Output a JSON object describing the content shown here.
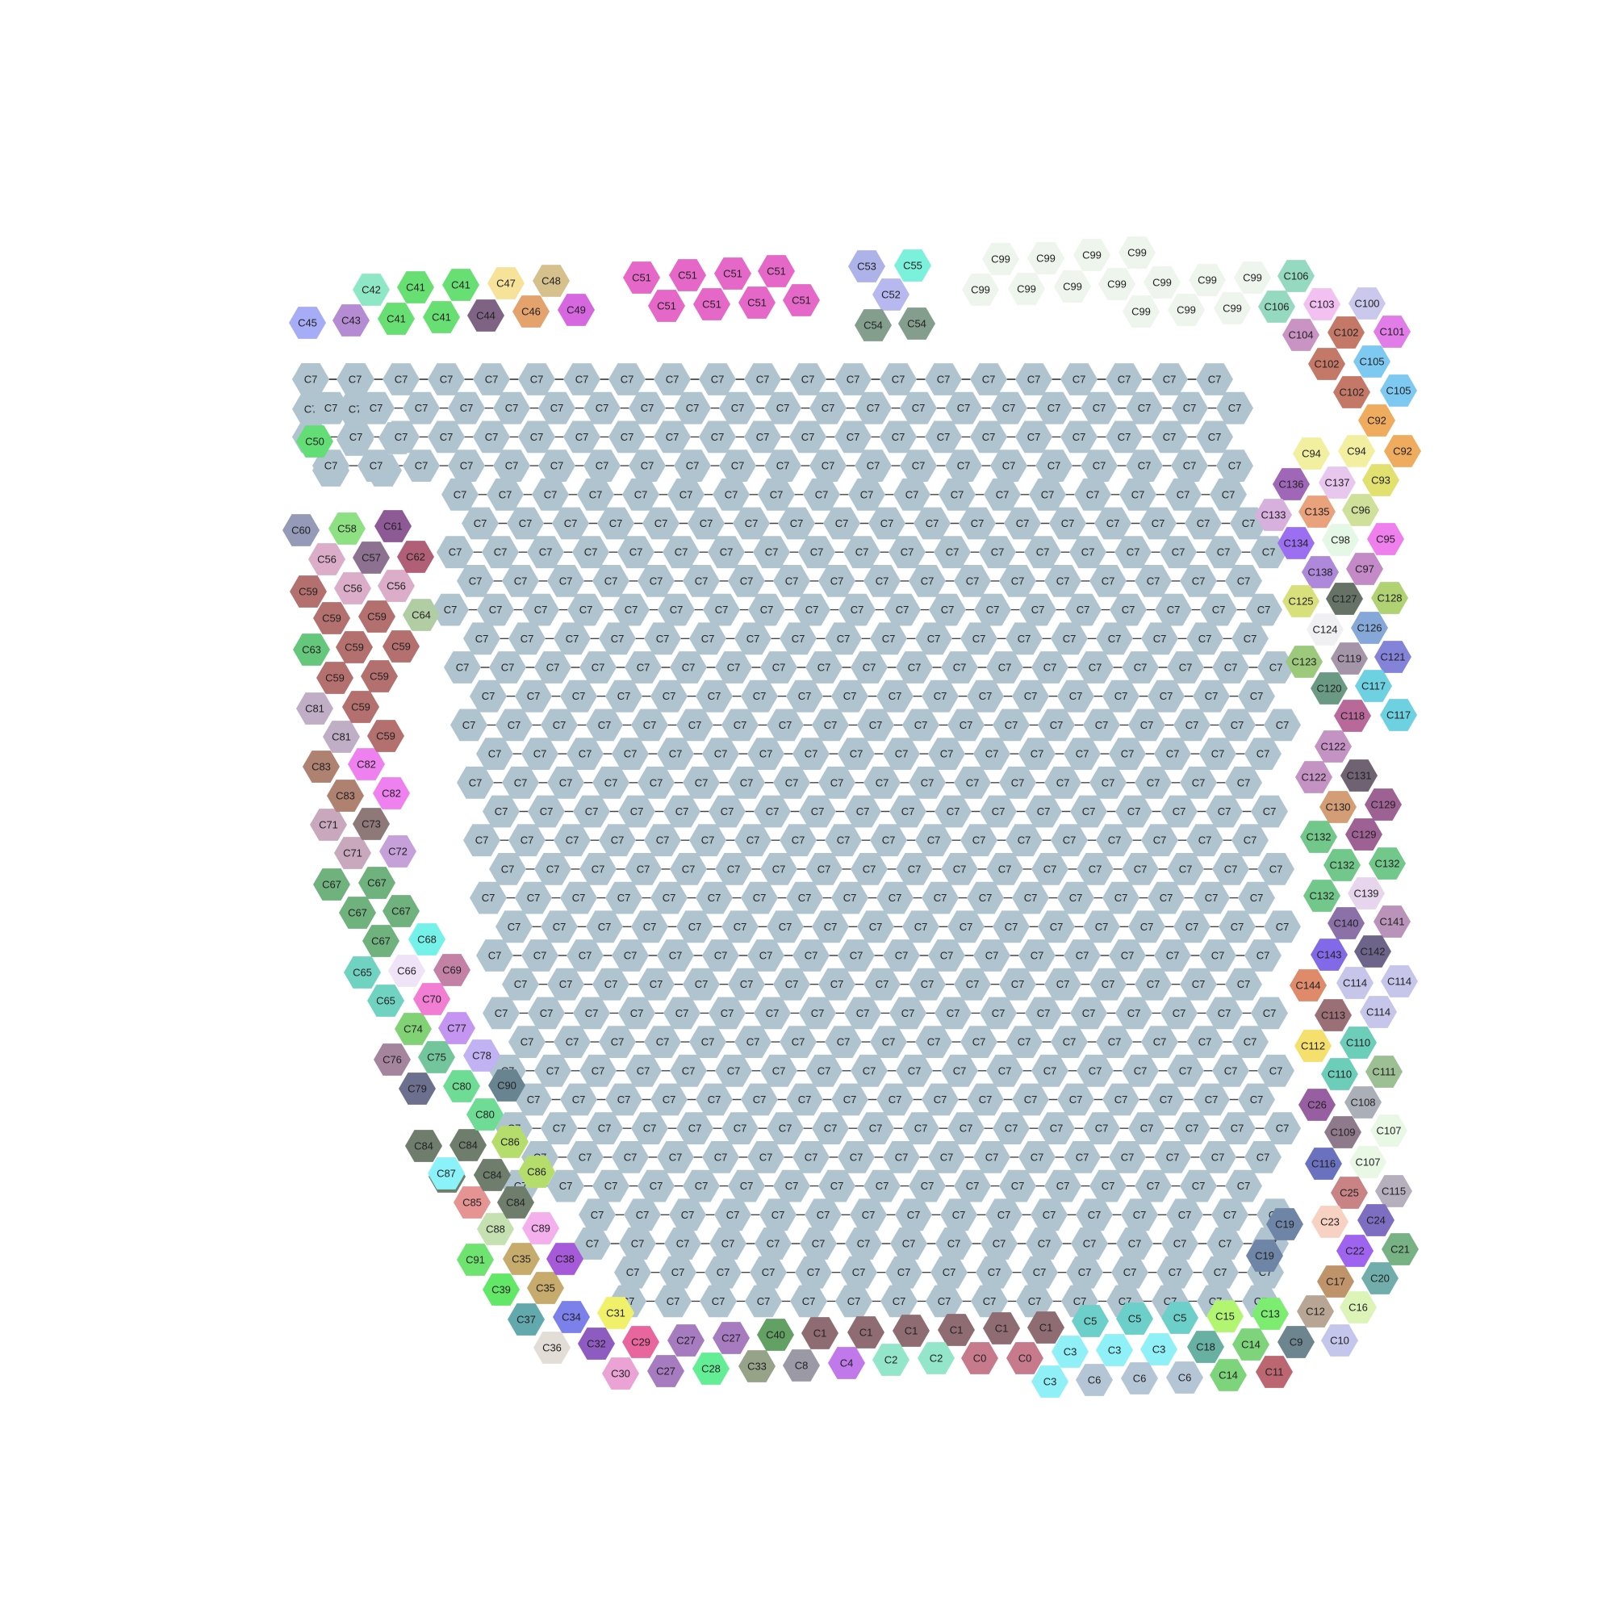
{
  "diagram": {
    "type": "hexagonal cluster graph",
    "main_cluster": {
      "label": "C7",
      "color": "#b0c4d0",
      "node_count": 1350
    },
    "small_clusters": [
      {
        "label": "C0",
        "color": "#c77a8b",
        "count": 2
      },
      {
        "label": "C1",
        "color": "#8f6c72",
        "count": 6
      },
      {
        "label": "C2",
        "color": "#93e6c9",
        "count": 2
      },
      {
        "label": "C3",
        "color": "#8ff1f7",
        "count": 4
      },
      {
        "label": "C4",
        "color": "#c078ea",
        "count": 1
      },
      {
        "label": "C5",
        "color": "#6ccfc9",
        "count": 3
      },
      {
        "label": "C6",
        "color": "#b4c5d5",
        "count": 3
      },
      {
        "label": "C8",
        "color": "#9b99a6",
        "count": 1
      },
      {
        "label": "C9",
        "color": "#6c858e",
        "count": 1
      },
      {
        "label": "C10",
        "color": "#c4c6ec",
        "count": 1
      },
      {
        "label": "C11",
        "color": "#bb6670",
        "count": 1
      },
      {
        "label": "C12",
        "color": "#b8a594",
        "count": 1
      },
      {
        "label": "C13",
        "color": "#7ced70",
        "count": 1
      },
      {
        "label": "C14",
        "color": "#7ed47a",
        "count": 2
      },
      {
        "label": "C15",
        "color": "#b2f571",
        "count": 1
      },
      {
        "label": "C16",
        "color": "#dcf4b7",
        "count": 1
      },
      {
        "label": "C17",
        "color": "#bf946a",
        "count": 1
      },
      {
        "label": "C18",
        "color": "#67b0a2",
        "count": 1
      },
      {
        "label": "C19",
        "color": "#6f85a7",
        "count": 2
      },
      {
        "label": "C20",
        "color": "#71aeab",
        "count": 1
      },
      {
        "label": "C21",
        "color": "#76b283",
        "count": 1
      },
      {
        "label": "C22",
        "color": "#9e63ef",
        "count": 1
      },
      {
        "label": "C23",
        "color": "#f7d2c3",
        "count": 1
      },
      {
        "label": "C24",
        "color": "#7e6ec2",
        "count": 1
      },
      {
        "label": "C25",
        "color": "#c98385",
        "count": 1
      },
      {
        "label": "C26",
        "color": "#985ea2",
        "count": 1
      },
      {
        "label": "C27",
        "color": "#a67bc0",
        "count": 3
      },
      {
        "label": "C28",
        "color": "#63ee96",
        "count": 1
      },
      {
        "label": "C29",
        "color": "#e8659e",
        "count": 1
      },
      {
        "label": "C30",
        "color": "#eba3d6",
        "count": 1
      },
      {
        "label": "C31",
        "color": "#f1f06b",
        "count": 1
      },
      {
        "label": "C32",
        "color": "#8e5bc1",
        "count": 1
      },
      {
        "label": "C33",
        "color": "#96a388",
        "count": 1
      },
      {
        "label": "C34",
        "color": "#7b80ea",
        "count": 1
      },
      {
        "label": "C35",
        "color": "#c7ab6d",
        "count": 2
      },
      {
        "label": "C36",
        "color": "#e2ded7",
        "count": 1
      },
      {
        "label": "C37",
        "color": "#62a9ad",
        "count": 1
      },
      {
        "label": "C38",
        "color": "#a659d9",
        "count": 1
      },
      {
        "label": "C39",
        "color": "#62e767",
        "count": 1
      },
      {
        "label": "C40",
        "color": "#62a064",
        "count": 1
      },
      {
        "label": "C41",
        "color": "#68df73",
        "count": 4
      },
      {
        "label": "C42",
        "color": "#8fe8c5",
        "count": 1
      },
      {
        "label": "C43",
        "color": "#b58bd3",
        "count": 1
      },
      {
        "label": "C44",
        "color": "#7f6385",
        "count": 1
      },
      {
        "label": "C45",
        "color": "#a6acf5",
        "count": 1
      },
      {
        "label": "C46",
        "color": "#e4a26d",
        "count": 1
      },
      {
        "label": "C47",
        "color": "#f6e298",
        "count": 1
      },
      {
        "label": "C48",
        "color": "#d6c18d",
        "count": 1
      },
      {
        "label": "C49",
        "color": "#d767e0",
        "count": 1
      },
      {
        "label": "C50",
        "color": "#63dd76",
        "count": 1
      },
      {
        "label": "C51",
        "color": "#e567c7",
        "count": 8
      },
      {
        "label": "C52",
        "color": "#b8b8f1",
        "count": 1
      },
      {
        "label": "C53",
        "color": "#adb3e8",
        "count": 1
      },
      {
        "label": "C54",
        "color": "#849e8e",
        "count": 2
      },
      {
        "label": "C55",
        "color": "#7bf0da",
        "count": 1
      },
      {
        "label": "C56",
        "color": "#dcadc9",
        "count": 3
      },
      {
        "label": "C57",
        "color": "#8d7191",
        "count": 1
      },
      {
        "label": "C58",
        "color": "#8ee183",
        "count": 1
      },
      {
        "label": "C59",
        "color": "#b3706e",
        "count": 8
      },
      {
        "label": "C60",
        "color": "#949ab7",
        "count": 1
      },
      {
        "label": "C61",
        "color": "#8e5a96",
        "count": 1
      },
      {
        "label": "C62",
        "color": "#b05f76",
        "count": 1
      },
      {
        "label": "C63",
        "color": "#64c77c",
        "count": 1
      },
      {
        "label": "C64",
        "color": "#b1cda4",
        "count": 1
      },
      {
        "label": "C65",
        "color": "#70d3c2",
        "count": 2
      },
      {
        "label": "C66",
        "color": "#efe3f7",
        "count": 1
      },
      {
        "label": "C67",
        "color": "#6fb27e",
        "count": 4
      },
      {
        "label": "C68",
        "color": "#74f1e8",
        "count": 1
      },
      {
        "label": "C69",
        "color": "#c381a5",
        "count": 1
      },
      {
        "label": "C70",
        "color": "#f27ed3",
        "count": 1
      },
      {
        "label": "C71",
        "color": "#c9a8bd",
        "count": 2
      },
      {
        "label": "C72",
        "color": "#c6a0d8",
        "count": 1
      },
      {
        "label": "C73",
        "color": "#8f7878",
        "count": 1
      },
      {
        "label": "C74",
        "color": "#80d275",
        "count": 1
      },
      {
        "label": "C75",
        "color": "#73c69c",
        "count": 1
      },
      {
        "label": "C76",
        "color": "#a5849e",
        "count": 1
      },
      {
        "label": "C77",
        "color": "#c596f1",
        "count": 1
      },
      {
        "label": "C78",
        "color": "#c1b3f3",
        "count": 1
      },
      {
        "label": "C79",
        "color": "#6c6f8e",
        "count": 1
      },
      {
        "label": "C80",
        "color": "#6edc94",
        "count": 2
      },
      {
        "label": "C81",
        "color": "#bfaec5",
        "count": 2
      },
      {
        "label": "C82",
        "color": "#ef80ef",
        "count": 2
      },
      {
        "label": "C83",
        "color": "#ae8170",
        "count": 2
      },
      {
        "label": "C84",
        "color": "#6e7d6c",
        "count": 5
      },
      {
        "label": "C85",
        "color": "#e59393",
        "count": 1
      },
      {
        "label": "C86",
        "color": "#b5dd6c",
        "count": 2
      },
      {
        "label": "C87",
        "color": "#8af2f8",
        "count": 1
      },
      {
        "label": "C88",
        "color": "#c5e0b1",
        "count": 1
      },
      {
        "label": "C89",
        "color": "#f3b0ed",
        "count": 1
      },
      {
        "label": "C90",
        "color": "#688490",
        "count": 1
      },
      {
        "label": "C91",
        "color": "#6fe36f",
        "count": 1
      },
      {
        "label": "C92",
        "color": "#efab5e",
        "count": 2
      },
      {
        "label": "C93",
        "color": "#e2e06f",
        "count": 1
      },
      {
        "label": "C94",
        "color": "#f2f0a0",
        "count": 2
      },
      {
        "label": "C95",
        "color": "#ee7fec",
        "count": 1
      },
      {
        "label": "C96",
        "color": "#cfe09a",
        "count": 1
      },
      {
        "label": "C97",
        "color": "#c489c7",
        "count": 1
      },
      {
        "label": "C98",
        "color": "#e5f7e5",
        "count": 1
      },
      {
        "label": "C99",
        "color": "#edf5ec",
        "count": 19
      },
      {
        "label": "C100",
        "color": "#cbc8ee",
        "count": 1
      },
      {
        "label": "C101",
        "color": "#e17ce9",
        "count": 1
      },
      {
        "label": "C102",
        "color": "#c47867",
        "count": 3
      },
      {
        "label": "C103",
        "color": "#f2c1f2",
        "count": 1
      },
      {
        "label": "C104",
        "color": "#c993c3",
        "count": 1
      },
      {
        "label": "C105",
        "color": "#7dc9f1",
        "count": 2
      },
      {
        "label": "C106",
        "color": "#96d9c1",
        "count": 2
      },
      {
        "label": "C107",
        "color": "#e8f8e5",
        "count": 2
      },
      {
        "label": "C108",
        "color": "#abb0b8",
        "count": 1
      },
      {
        "label": "C109",
        "color": "#8f7a8c",
        "count": 1
      },
      {
        "label": "C110",
        "color": "#6ccdb9",
        "count": 2
      },
      {
        "label": "C111",
        "color": "#9cbf94",
        "count": 1
      },
      {
        "label": "C112",
        "color": "#f5df6d",
        "count": 1
      },
      {
        "label": "C113",
        "color": "#9a6f75",
        "count": 1
      },
      {
        "label": "C114",
        "color": "#c5c6ea",
        "count": 3
      },
      {
        "label": "C115",
        "color": "#b6afbe",
        "count": 1
      },
      {
        "label": "C116",
        "color": "#6a72bf",
        "count": 1
      },
      {
        "label": "C117",
        "color": "#6ed1e2",
        "count": 2
      },
      {
        "label": "C118",
        "color": "#b9689a",
        "count": 1
      },
      {
        "label": "C119",
        "color": "#a595a9",
        "count": 1
      },
      {
        "label": "C120",
        "color": "#6b9a84",
        "count": 1
      },
      {
        "label": "C121",
        "color": "#8483da",
        "count": 1
      },
      {
        "label": "C122",
        "color": "#c492c3",
        "count": 2
      },
      {
        "label": "C123",
        "color": "#9dc97c",
        "count": 1
      },
      {
        "label": "C124",
        "color": "#f0eff2",
        "count": 1
      },
      {
        "label": "C125",
        "color": "#d8e07c",
        "count": 1
      },
      {
        "label": "C126",
        "color": "#86a8d8",
        "count": 1
      },
      {
        "label": "C127",
        "color": "#667266",
        "count": 1
      },
      {
        "label": "C128",
        "color": "#b1d272",
        "count": 1
      },
      {
        "label": "C129",
        "color": "#9e6194",
        "count": 2
      },
      {
        "label": "C130",
        "color": "#d39e75",
        "count": 1
      },
      {
        "label": "C131",
        "color": "#6f6273",
        "count": 1
      },
      {
        "label": "C132",
        "color": "#72c78a",
        "count": 4
      },
      {
        "label": "C133",
        "color": "#d7b0de",
        "count": 1
      },
      {
        "label": "C134",
        "color": "#9c6ff2",
        "count": 1
      },
      {
        "label": "C135",
        "color": "#e9a27b",
        "count": 1
      },
      {
        "label": "C136",
        "color": "#a067b8",
        "count": 1
      },
      {
        "label": "C137",
        "color": "#e8c7ef",
        "count": 1
      },
      {
        "label": "C138",
        "color": "#ae88da",
        "count": 1
      },
      {
        "label": "C139",
        "color": "#e7d5ed",
        "count": 1
      },
      {
        "label": "C140",
        "color": "#8b71a8",
        "count": 1
      },
      {
        "label": "C141",
        "color": "#b993b9",
        "count": 1
      },
      {
        "label": "C142",
        "color": "#6c6589",
        "count": 1
      },
      {
        "label": "C143",
        "color": "#8269e7",
        "count": 1
      },
      {
        "label": "C144",
        "color": "#e08a6c",
        "count": 1
      }
    ]
  }
}
